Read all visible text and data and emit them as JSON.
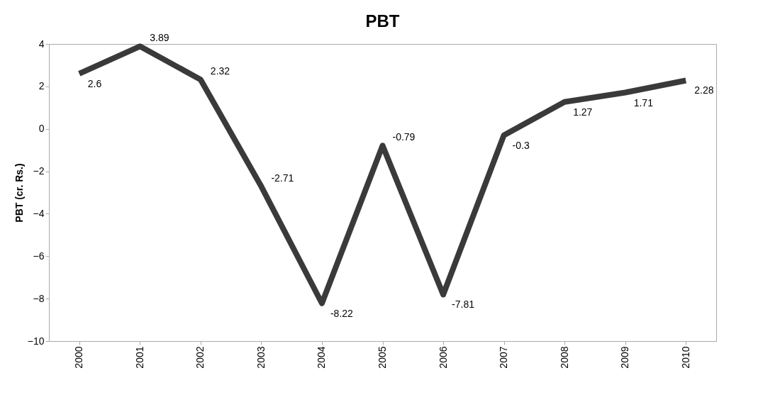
{
  "chart_data": {
    "type": "line",
    "title": "PBT",
    "ylabel": "PBT (cr. Rs.)",
    "categories": [
      "2000",
      "2001",
      "2002",
      "2003",
      "2004",
      "2005",
      "2006",
      "2007",
      "2008",
      "2009",
      "2010"
    ],
    "series": [
      {
        "color": "#3a3a3a",
        "values": [
          2.6,
          3.89,
          2.32,
          -2.71,
          -8.22,
          -0.79,
          -7.81,
          -0.3,
          1.27,
          1.71,
          2.28
        ]
      }
    ],
    "ylim": [
      -10,
      4
    ],
    "yticks": [
      -10,
      -8,
      -6,
      -4,
      -2,
      0,
      2,
      4
    ],
    "data_labels": true,
    "grid": false,
    "marker": "none",
    "line_style": "solid"
  }
}
